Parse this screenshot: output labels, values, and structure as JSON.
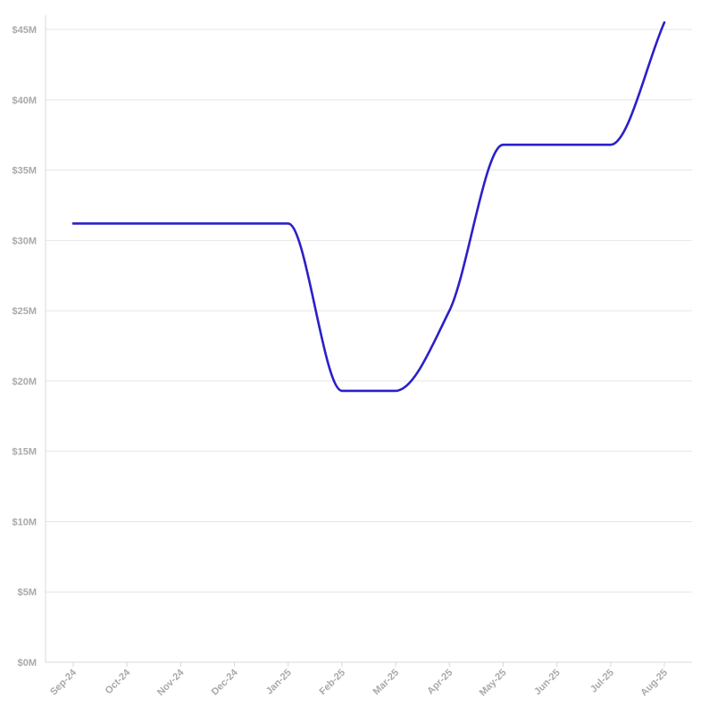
{
  "chart_data": {
    "type": "line",
    "title": "",
    "xlabel": "",
    "ylabel": "",
    "x": [
      "Sep-24",
      "Oct-24",
      "Nov-24",
      "Dec-24",
      "Jan-25",
      "Feb-25",
      "Mar-25",
      "Apr-25",
      "May-25",
      "Jun-25",
      "Jul-25",
      "Aug-25"
    ],
    "series": [
      {
        "values": [
          31.2,
          31.2,
          31.2,
          31.2,
          31.2,
          19.3,
          19.3,
          25.0,
          36.8,
          36.8,
          36.8,
          45.5
        ],
        "color": "#2b20c8"
      }
    ],
    "ylim": [
      0,
      45
    ],
    "yticks": [
      0,
      5,
      10,
      15,
      20,
      25,
      30,
      35,
      40,
      45
    ],
    "ytick_labels": [
      "$0M",
      "$5M",
      "$10M",
      "$15M",
      "$20M",
      "$25M",
      "$30M",
      "$35M",
      "$40M",
      "$45M"
    ],
    "grid": true,
    "legend": "none"
  }
}
